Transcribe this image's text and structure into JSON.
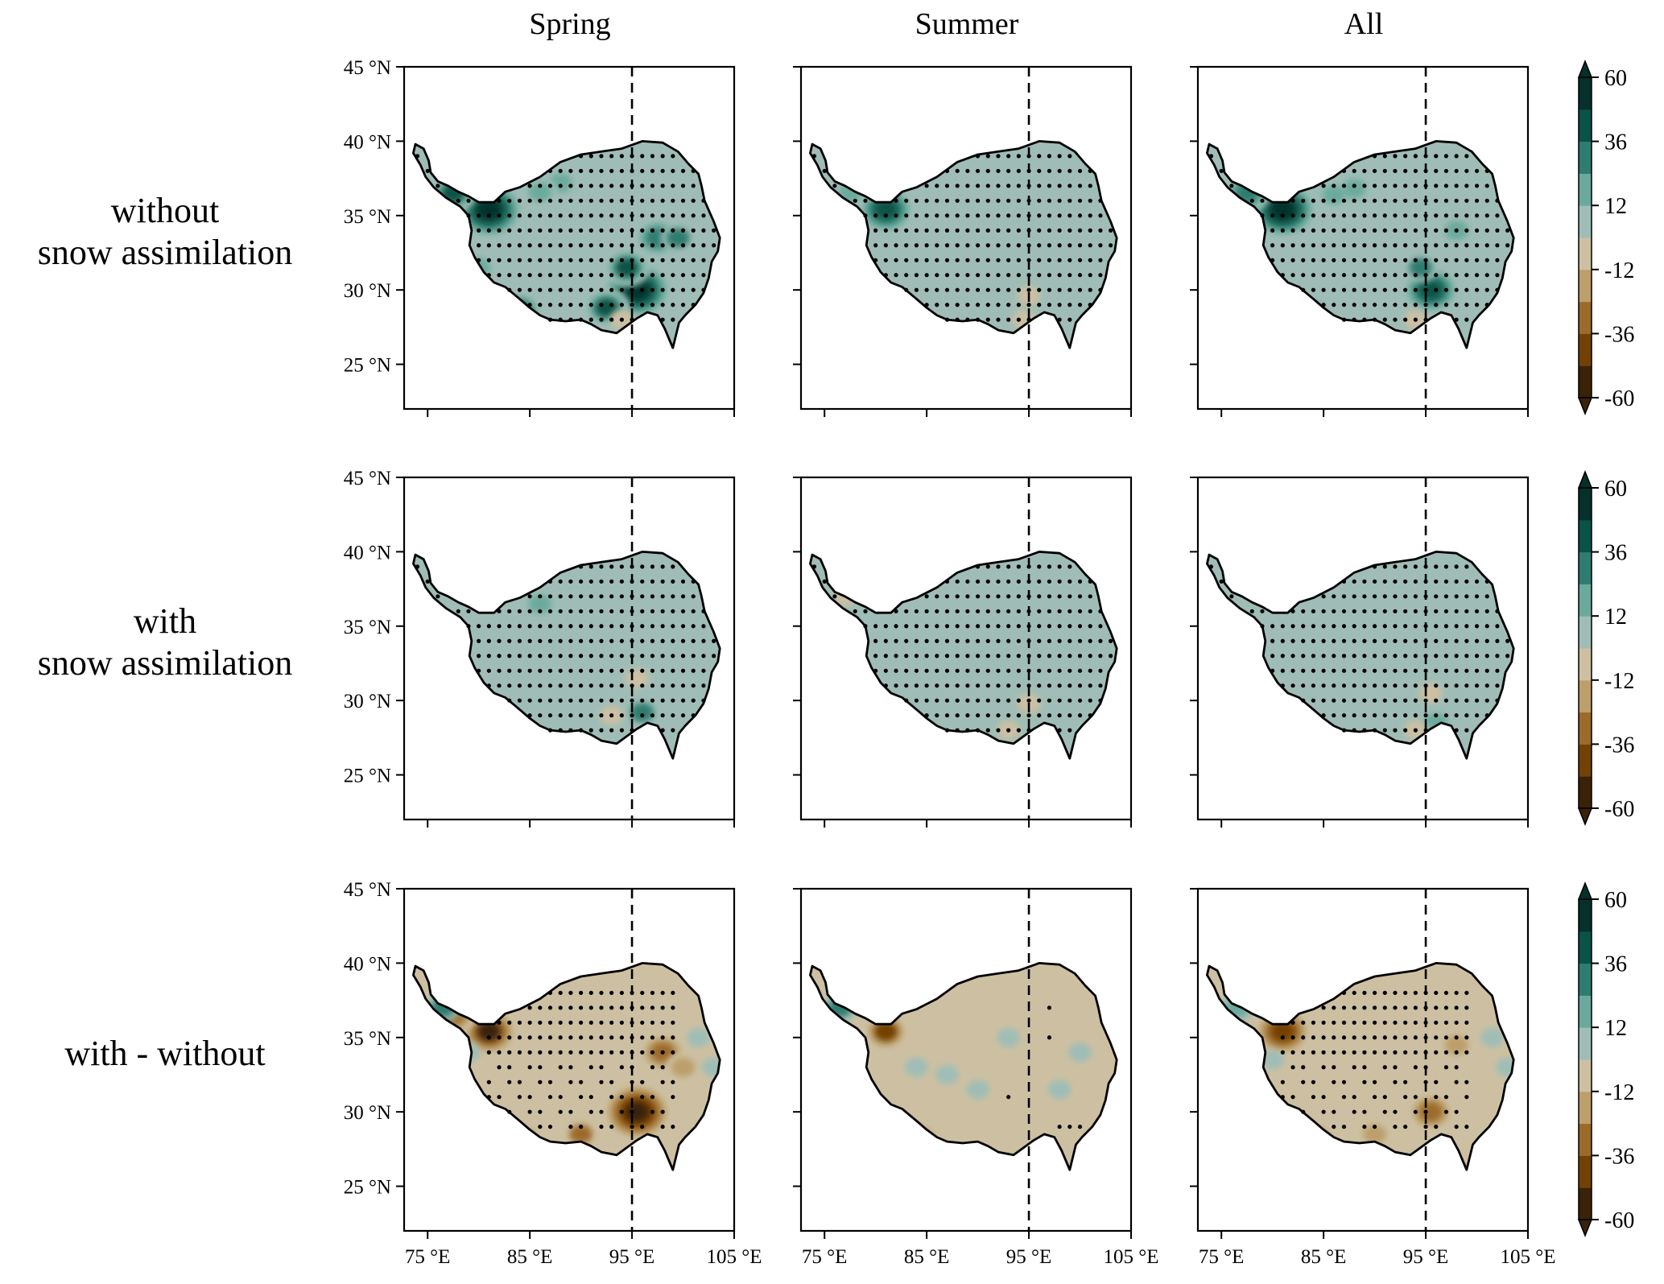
{
  "chart_data": {
    "type": "heatmap",
    "columns": [
      "Spring",
      "Summer",
      "All"
    ],
    "rows": [
      "without\nsnow assimilation",
      "with\nsnow assimilation",
      "with - without"
    ],
    "row_lines": [
      [
        "without",
        "snow assimilation"
      ],
      [
        "with",
        "snow assimilation"
      ],
      [
        "with - without"
      ]
    ],
    "xlim": [
      72.7,
      105
    ],
    "ylim": [
      22,
      45
    ],
    "xticks": [
      75,
      85,
      95,
      105
    ],
    "xtick_labels": [
      "75 °E",
      "85 °E",
      "95 °E",
      "105 °E"
    ],
    "yticks": [
      25,
      30,
      35,
      40,
      45
    ],
    "ytick_labels": [
      "25 °N",
      "30 °N",
      "35 °N",
      "40 °N",
      "45 °N"
    ],
    "reference_line_lon": 95,
    "colorbar": {
      "levels": [
        -60,
        -48,
        -36,
        -24,
        -12,
        0,
        12,
        24,
        36,
        48,
        60
      ],
      "tick_values": [
        60,
        36,
        12,
        -12,
        -36,
        -60
      ],
      "tick_labels": [
        "60",
        "36",
        "12",
        "-12",
        "-36",
        "-60"
      ],
      "colors": [
        "#3a2208",
        "#734106",
        "#9c6a2a",
        "#bc9f6a",
        "#cdc0a2",
        "#9fbdb6",
        "#6aaa9d",
        "#2f7c70",
        "#0a5347",
        "#06302a"
      ],
      "extend": "both"
    },
    "panels": [
      {
        "row": 0,
        "col": 0,
        "base": 8,
        "stipple": "full",
        "hotspots": [
          [
            81,
            35.4,
            58
          ],
          [
            77.5,
            36.5,
            40
          ],
          [
            95.5,
            30,
            60
          ],
          [
            94.5,
            31.5,
            40
          ],
          [
            97.5,
            33.5,
            30
          ],
          [
            99.5,
            33.5,
            28
          ],
          [
            88,
            37.2,
            20
          ],
          [
            86,
            36.6,
            20
          ],
          [
            92.5,
            28.8,
            40
          ],
          [
            84,
            28.6,
            36
          ],
          [
            80,
            31.5,
            22
          ],
          [
            94,
            28,
            -8
          ]
        ]
      },
      {
        "row": 0,
        "col": 1,
        "base": 6,
        "stipple": "full",
        "hotspots": [
          [
            81,
            35.4,
            45
          ],
          [
            77.5,
            36.5,
            18
          ],
          [
            95,
            29.6,
            -6
          ],
          [
            94.5,
            28,
            -6
          ]
        ]
      },
      {
        "row": 0,
        "col": 2,
        "base": 7,
        "stipple": "full",
        "hotspots": [
          [
            81,
            35.4,
            55
          ],
          [
            77.5,
            36.5,
            32
          ],
          [
            95.5,
            30,
            45
          ],
          [
            94.5,
            31.5,
            25
          ],
          [
            98,
            34,
            22
          ],
          [
            88,
            36.8,
            16
          ],
          [
            86,
            36.4,
            16
          ],
          [
            84,
            28.6,
            22
          ],
          [
            94,
            28,
            -6
          ]
        ]
      },
      {
        "row": 1,
        "col": 0,
        "base": 6,
        "stipple": "full",
        "hotspots": [
          [
            96,
            29.2,
            28
          ],
          [
            95.5,
            31.5,
            -6
          ],
          [
            93,
            29,
            -6
          ],
          [
            86,
            36.5,
            18
          ],
          [
            96,
            27.5,
            -8
          ]
        ]
      },
      {
        "row": 1,
        "col": 1,
        "base": 5,
        "stipple": "full",
        "hotspots": [
          [
            77,
            37,
            -8
          ],
          [
            95,
            29.8,
            -8
          ],
          [
            93,
            28,
            -6
          ]
        ]
      },
      {
        "row": 1,
        "col": 2,
        "base": 5,
        "stipple": "full",
        "hotspots": [
          [
            95.5,
            30.5,
            -8
          ],
          [
            96,
            28.5,
            14
          ],
          [
            94,
            28,
            -6
          ]
        ]
      },
      {
        "row": 2,
        "col": 0,
        "base": -6,
        "stipple": "partial",
        "hotspots": [
          [
            81,
            35.4,
            -50
          ],
          [
            77.5,
            36.5,
            -30
          ],
          [
            95.5,
            30,
            -60
          ],
          [
            98,
            34,
            -30
          ],
          [
            100,
            33,
            -24
          ],
          [
            79,
            34,
            6
          ],
          [
            90,
            28.5,
            -28
          ],
          [
            84.5,
            28.3,
            -24
          ],
          [
            101.5,
            35,
            6
          ],
          [
            103,
            33,
            6
          ],
          [
            76.5,
            37,
            24
          ]
        ]
      },
      {
        "row": 2,
        "col": 1,
        "base": -5,
        "stipple": "sparse",
        "hotspots": [
          [
            81,
            35.4,
            -40
          ],
          [
            87,
            32.5,
            6
          ],
          [
            84,
            33,
            6
          ],
          [
            90,
            31.5,
            6
          ],
          [
            98,
            31.5,
            6
          ],
          [
            100,
            34,
            6
          ],
          [
            93,
            35,
            6
          ],
          [
            84.5,
            28.3,
            -24
          ],
          [
            76.5,
            37,
            24
          ]
        ]
      },
      {
        "row": 2,
        "col": 2,
        "base": -5,
        "stipple": "partial",
        "hotspots": [
          [
            81,
            35.4,
            -45
          ],
          [
            95.5,
            30,
            -36
          ],
          [
            98,
            34.5,
            -18
          ],
          [
            80,
            33.5,
            6
          ],
          [
            101.5,
            35,
            6
          ],
          [
            103,
            33,
            6
          ],
          [
            90,
            28.5,
            -22
          ],
          [
            84.5,
            28.3,
            -20
          ],
          [
            76.5,
            37,
            20
          ]
        ]
      }
    ]
  }
}
